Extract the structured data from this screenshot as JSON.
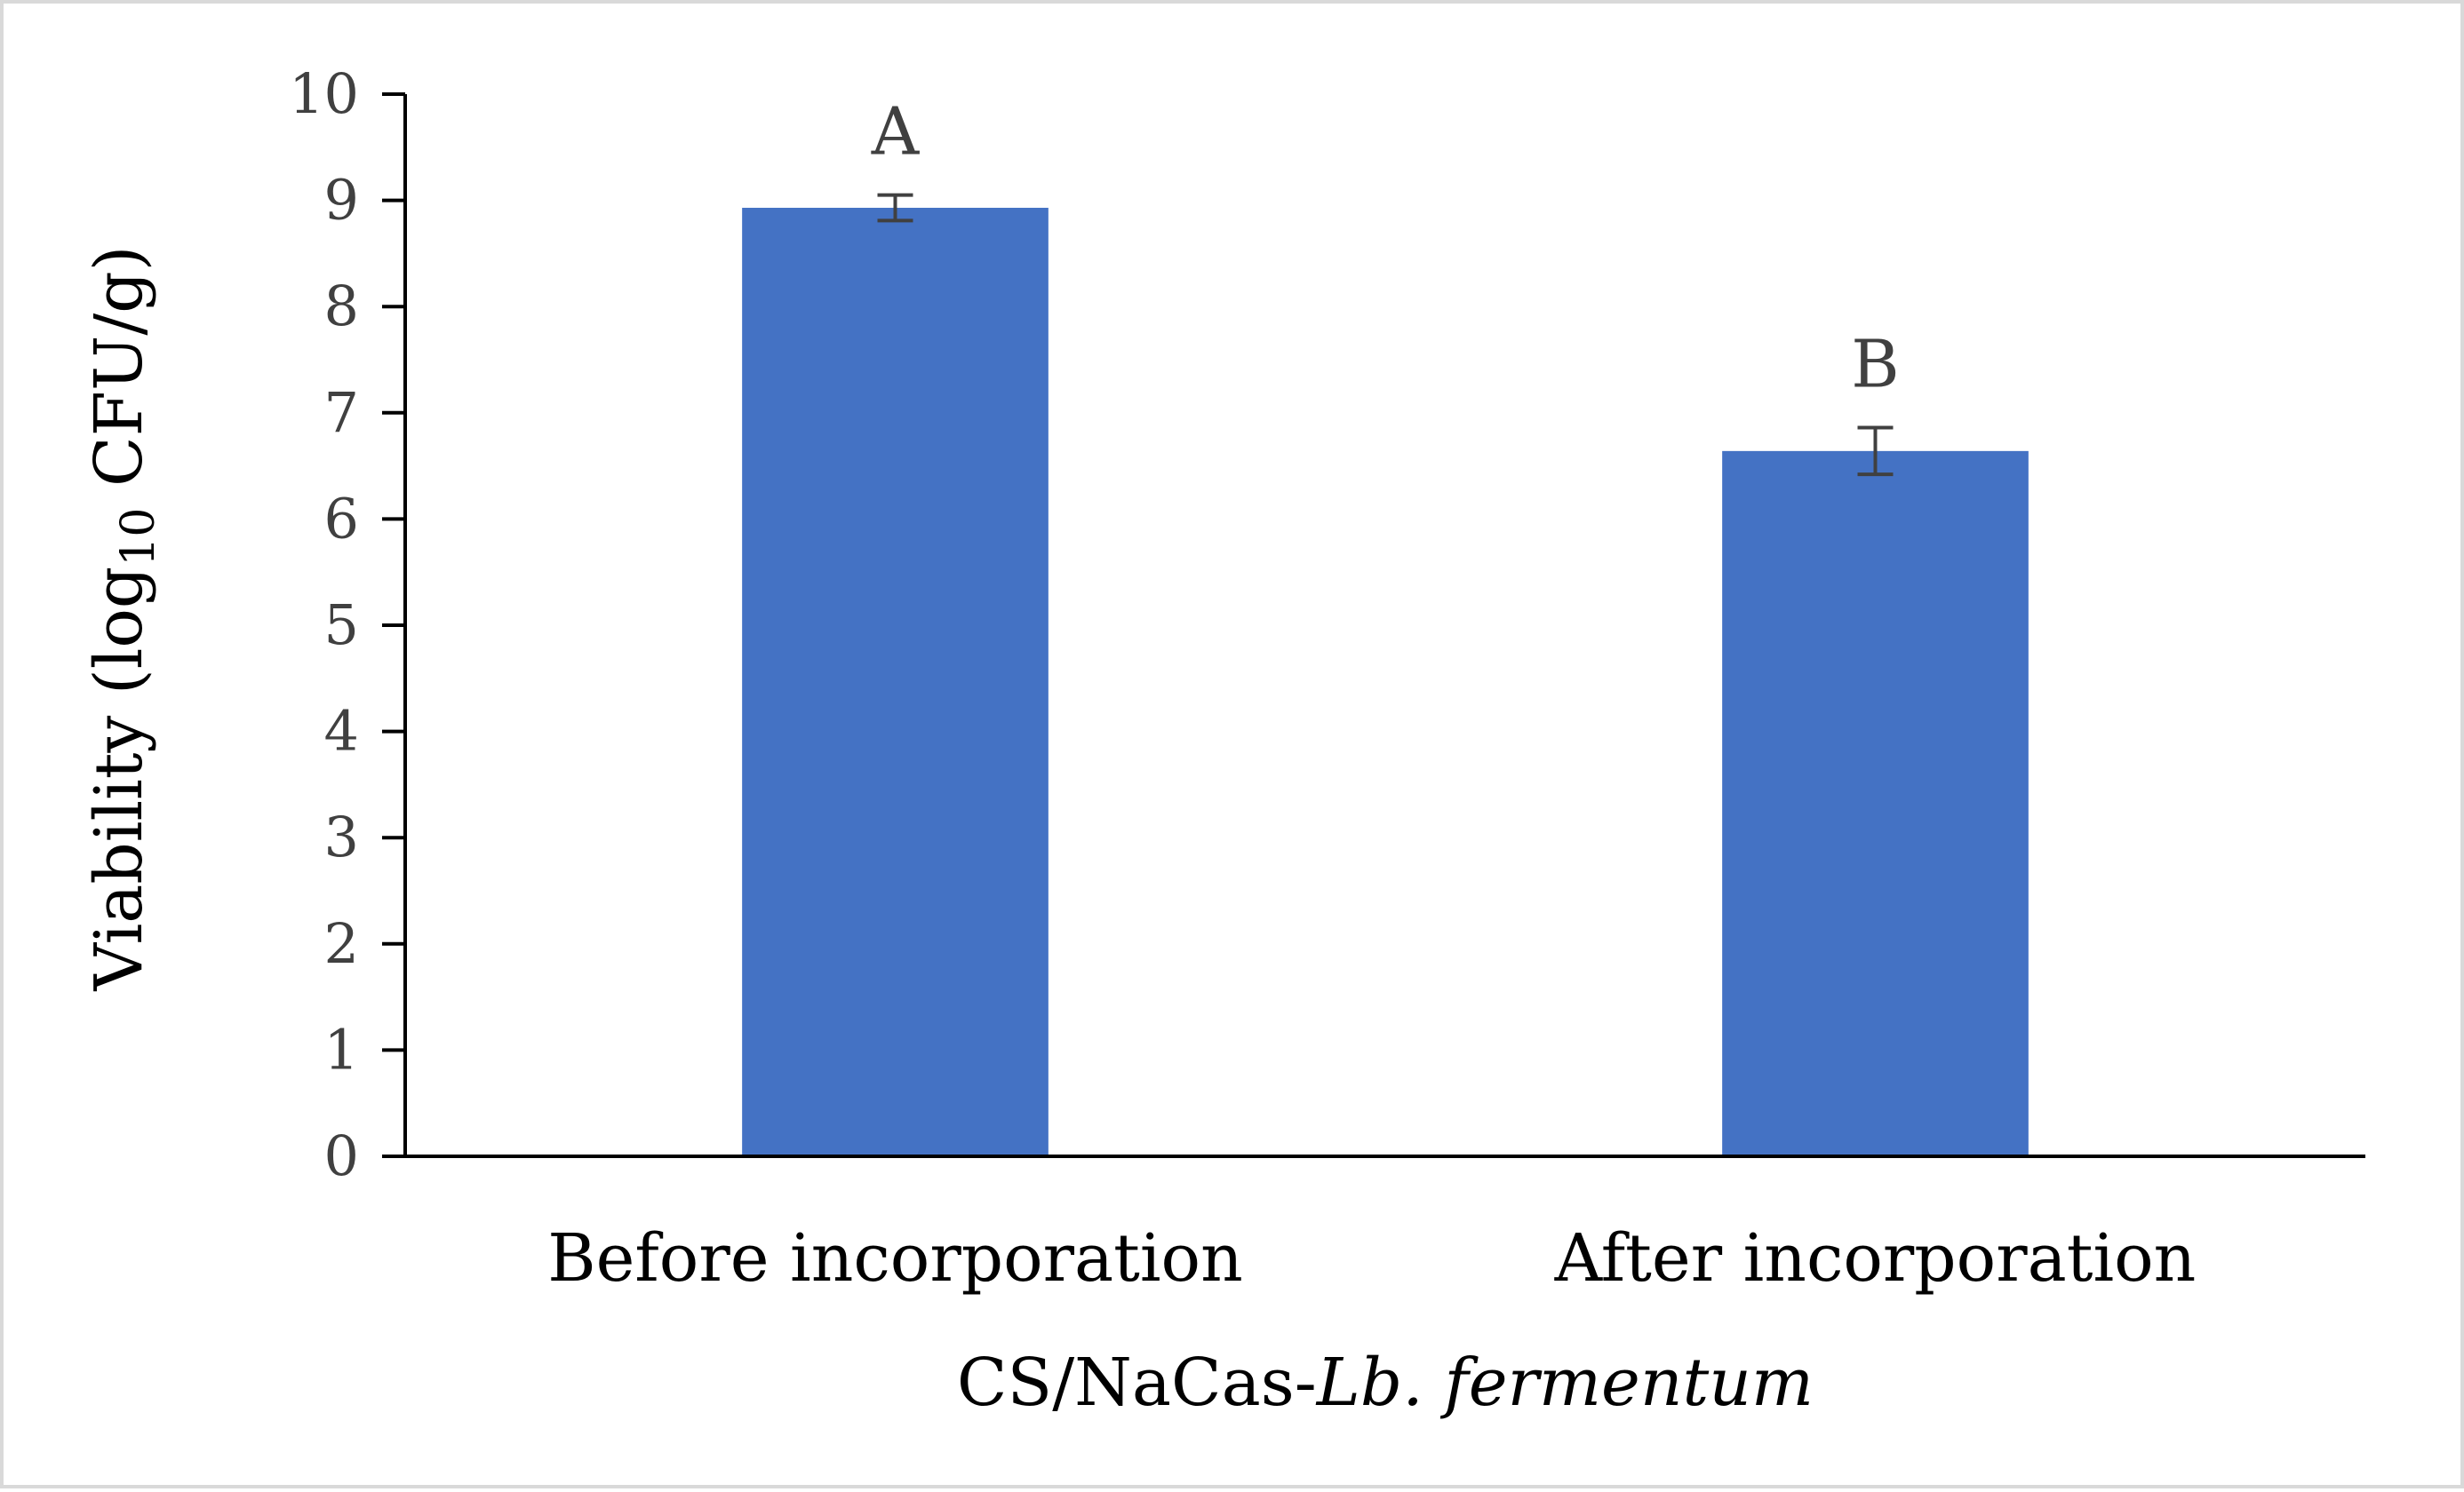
{
  "chart_data": {
    "type": "bar",
    "categories": [
      "Before incorporation",
      "After incorporation"
    ],
    "values": [
      8.93,
      6.64
    ],
    "errors": [
      0.12,
      0.22
    ],
    "significance_letters": [
      "A",
      "B"
    ],
    "ylim": [
      0,
      10
    ],
    "yticks": [
      "0",
      "1",
      "2",
      "3",
      "4",
      "5",
      "6",
      "7",
      "8",
      "9",
      "10"
    ],
    "xlabel": {
      "main": "CS/NaCas-",
      "italic": "Lb. fermentum"
    },
    "ylabel": {
      "before": "Viability (log",
      "subscript": "10",
      "after": " CFU/g)"
    },
    "bar_color": "#4472c4",
    "grid": false,
    "legend": "none"
  }
}
